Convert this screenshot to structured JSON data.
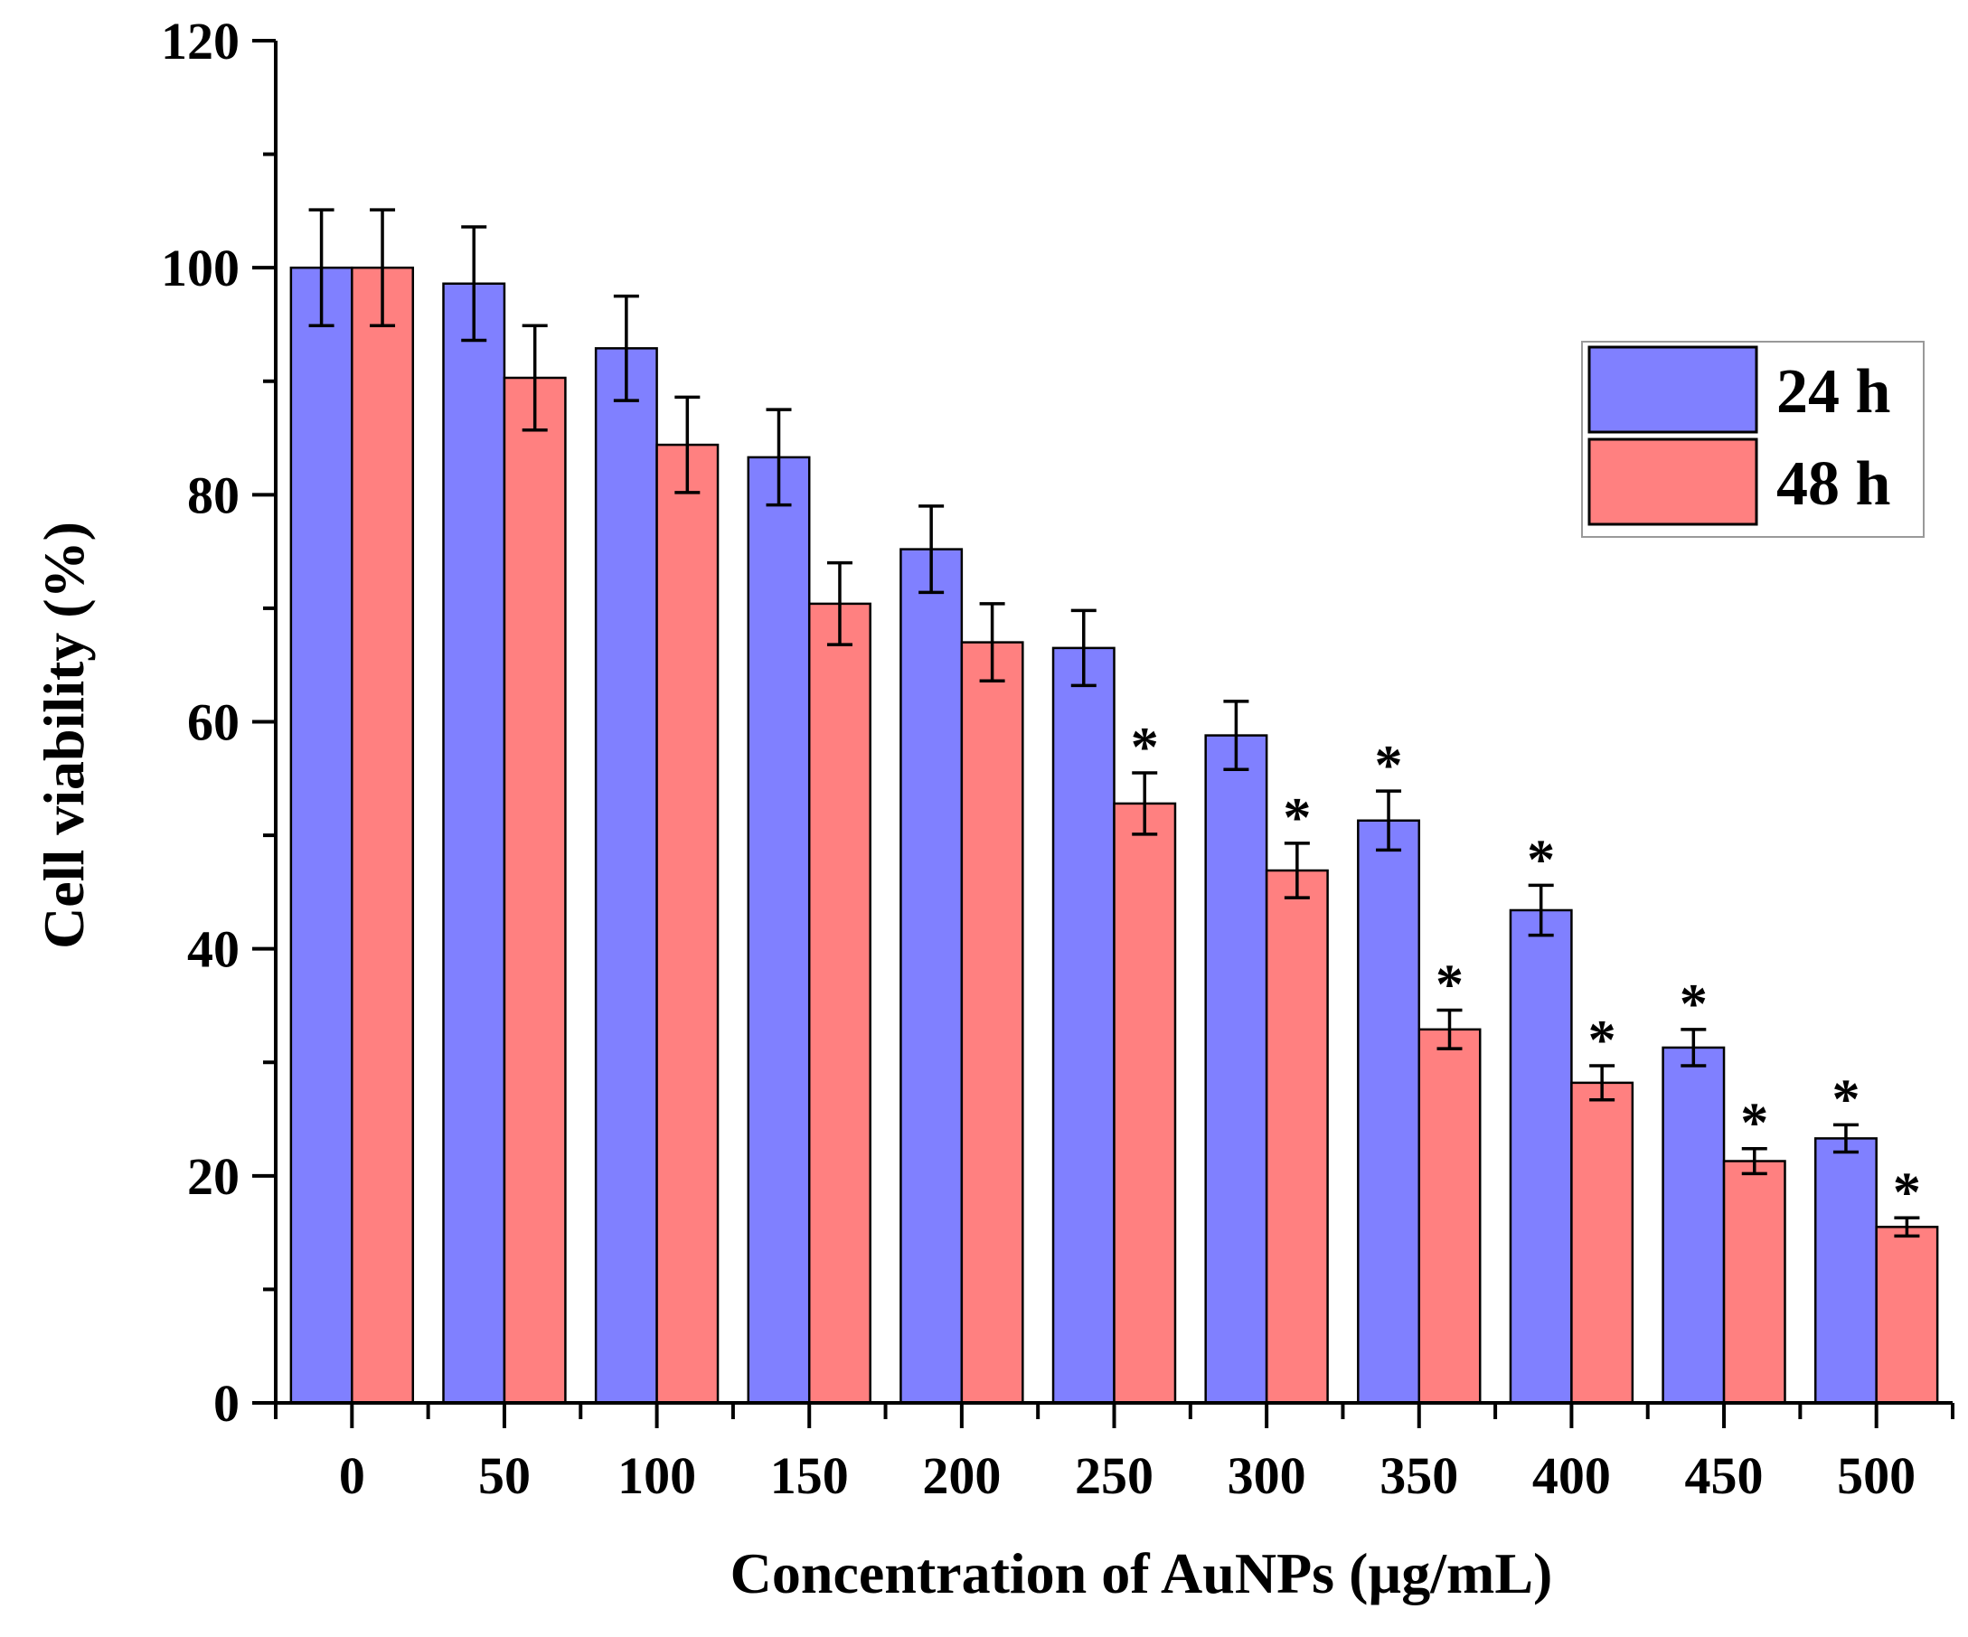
{
  "chart_data": {
    "type": "bar",
    "xlabel": "Concentration of AuNPs (µg/mL)",
    "ylabel": "Cell viability (%)",
    "ylim": [
      0,
      120
    ],
    "yticks": [
      0,
      20,
      40,
      60,
      80,
      100,
      120
    ],
    "categories": [
      "0",
      "50",
      "100",
      "150",
      "200",
      "250",
      "300",
      "350",
      "400",
      "450",
      "500"
    ],
    "series": [
      {
        "name": "24 h",
        "color": "#8080ff",
        "values": [
          100,
          98.6,
          92.9,
          83.3,
          75.2,
          66.5,
          58.8,
          51.3,
          43.4,
          31.3,
          23.3
        ],
        "errors": [
          5.1,
          5.0,
          4.6,
          4.2,
          3.8,
          3.3,
          3.0,
          2.6,
          2.2,
          1.6,
          1.2
        ],
        "significance": [
          "",
          "",
          "",
          "",
          "",
          "",
          "",
          "*",
          "*",
          "*",
          "*"
        ]
      },
      {
        "name": "48 h",
        "color": "#ff8080",
        "values": [
          100,
          90.3,
          84.4,
          70.4,
          67.0,
          52.8,
          46.9,
          32.9,
          28.2,
          21.3,
          15.5
        ],
        "errors": [
          5.1,
          4.6,
          4.2,
          3.6,
          3.4,
          2.7,
          2.4,
          1.7,
          1.5,
          1.1,
          0.8
        ],
        "significance": [
          "",
          "",
          "",
          "",
          "",
          "*",
          "*",
          "*",
          "*",
          "*",
          "*"
        ]
      }
    ],
    "legend": {
      "position": "top-right"
    },
    "grid": false
  }
}
